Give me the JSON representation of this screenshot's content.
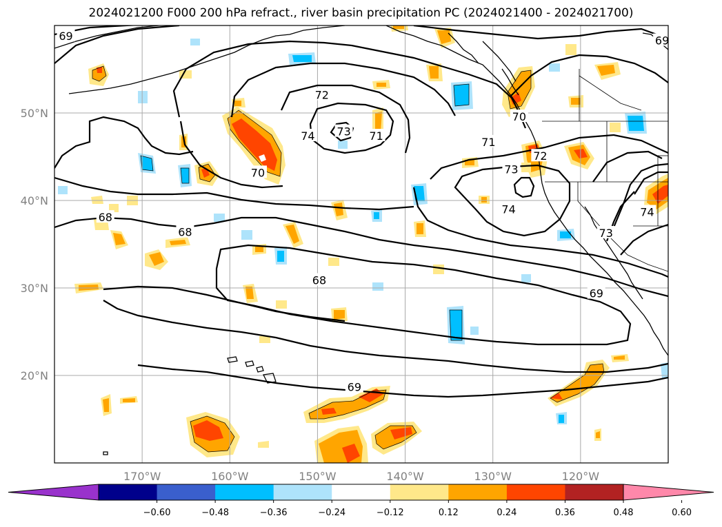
{
  "title": "2024021200 F000 200 hPa refract., river basin precipitation PC (2024021400 - 2024021700)",
  "map": {
    "lon_range": [
      -180,
      -110
    ],
    "lat_range": [
      10,
      60
    ],
    "lat_ticks": [
      {
        "value": 20,
        "label": "20°N"
      },
      {
        "value": 30,
        "label": "30°N"
      },
      {
        "value": 40,
        "label": "40°N"
      },
      {
        "value": 50,
        "label": "50°N"
      }
    ],
    "lon_ticks": [
      {
        "value": -170,
        "label": "170°W"
      },
      {
        "value": -160,
        "label": "160°W"
      },
      {
        "value": -150,
        "label": "150°W"
      },
      {
        "value": -140,
        "label": "140°W"
      },
      {
        "value": -130,
        "label": "130°W"
      },
      {
        "value": -120,
        "label": "120°W"
      }
    ],
    "contour_labels": [
      {
        "text": "69",
        "lon": -178.7,
        "lat": 58.8
      },
      {
        "text": "69",
        "lon": -110.7,
        "lat": 58.3
      },
      {
        "text": "72",
        "lon": -149.5,
        "lat": 52.1
      },
      {
        "text": "74",
        "lon": -151.1,
        "lat": 47.4
      },
      {
        "text": "73",
        "lon": -147.0,
        "lat": 47.9
      },
      {
        "text": "71",
        "lon": -143.3,
        "lat": 47.4
      },
      {
        "text": "70",
        "lon": -127.0,
        "lat": 49.6
      },
      {
        "text": "71",
        "lon": -130.5,
        "lat": 46.7
      },
      {
        "text": "72",
        "lon": -124.6,
        "lat": 45.1
      },
      {
        "text": "73",
        "lon": -127.9,
        "lat": 43.6
      },
      {
        "text": "74",
        "lon": -128.2,
        "lat": 39.0
      },
      {
        "text": "74",
        "lon": -112.4,
        "lat": 38.7
      },
      {
        "text": "73",
        "lon": -117.1,
        "lat": 36.3
      },
      {
        "text": "70",
        "lon": -156.8,
        "lat": 43.2
      },
      {
        "text": "68",
        "lon": -174.2,
        "lat": 38.1
      },
      {
        "text": "68",
        "lon": -165.1,
        "lat": 36.4
      },
      {
        "text": "68",
        "lon": -149.8,
        "lat": 30.9
      },
      {
        "text": "69",
        "lon": -118.2,
        "lat": 29.4
      },
      {
        "text": "69",
        "lon": -145.8,
        "lat": 18.7
      }
    ]
  },
  "colorbar": {
    "colors": [
      "#9932cc",
      "#00008b",
      "#3a5fcd",
      "#00bfff",
      "#aee3fb",
      "#ffffff",
      "#ffe88a",
      "#ffa500",
      "#ff4500",
      "#b22222",
      "#ff88aa"
    ],
    "tick_labels": [
      "−0.60",
      "−0.48",
      "−0.36",
      "−0.24",
      "−0.12",
      "0.12",
      "0.24",
      "0.36",
      "0.48",
      "0.60"
    ],
    "extend": "both"
  }
}
